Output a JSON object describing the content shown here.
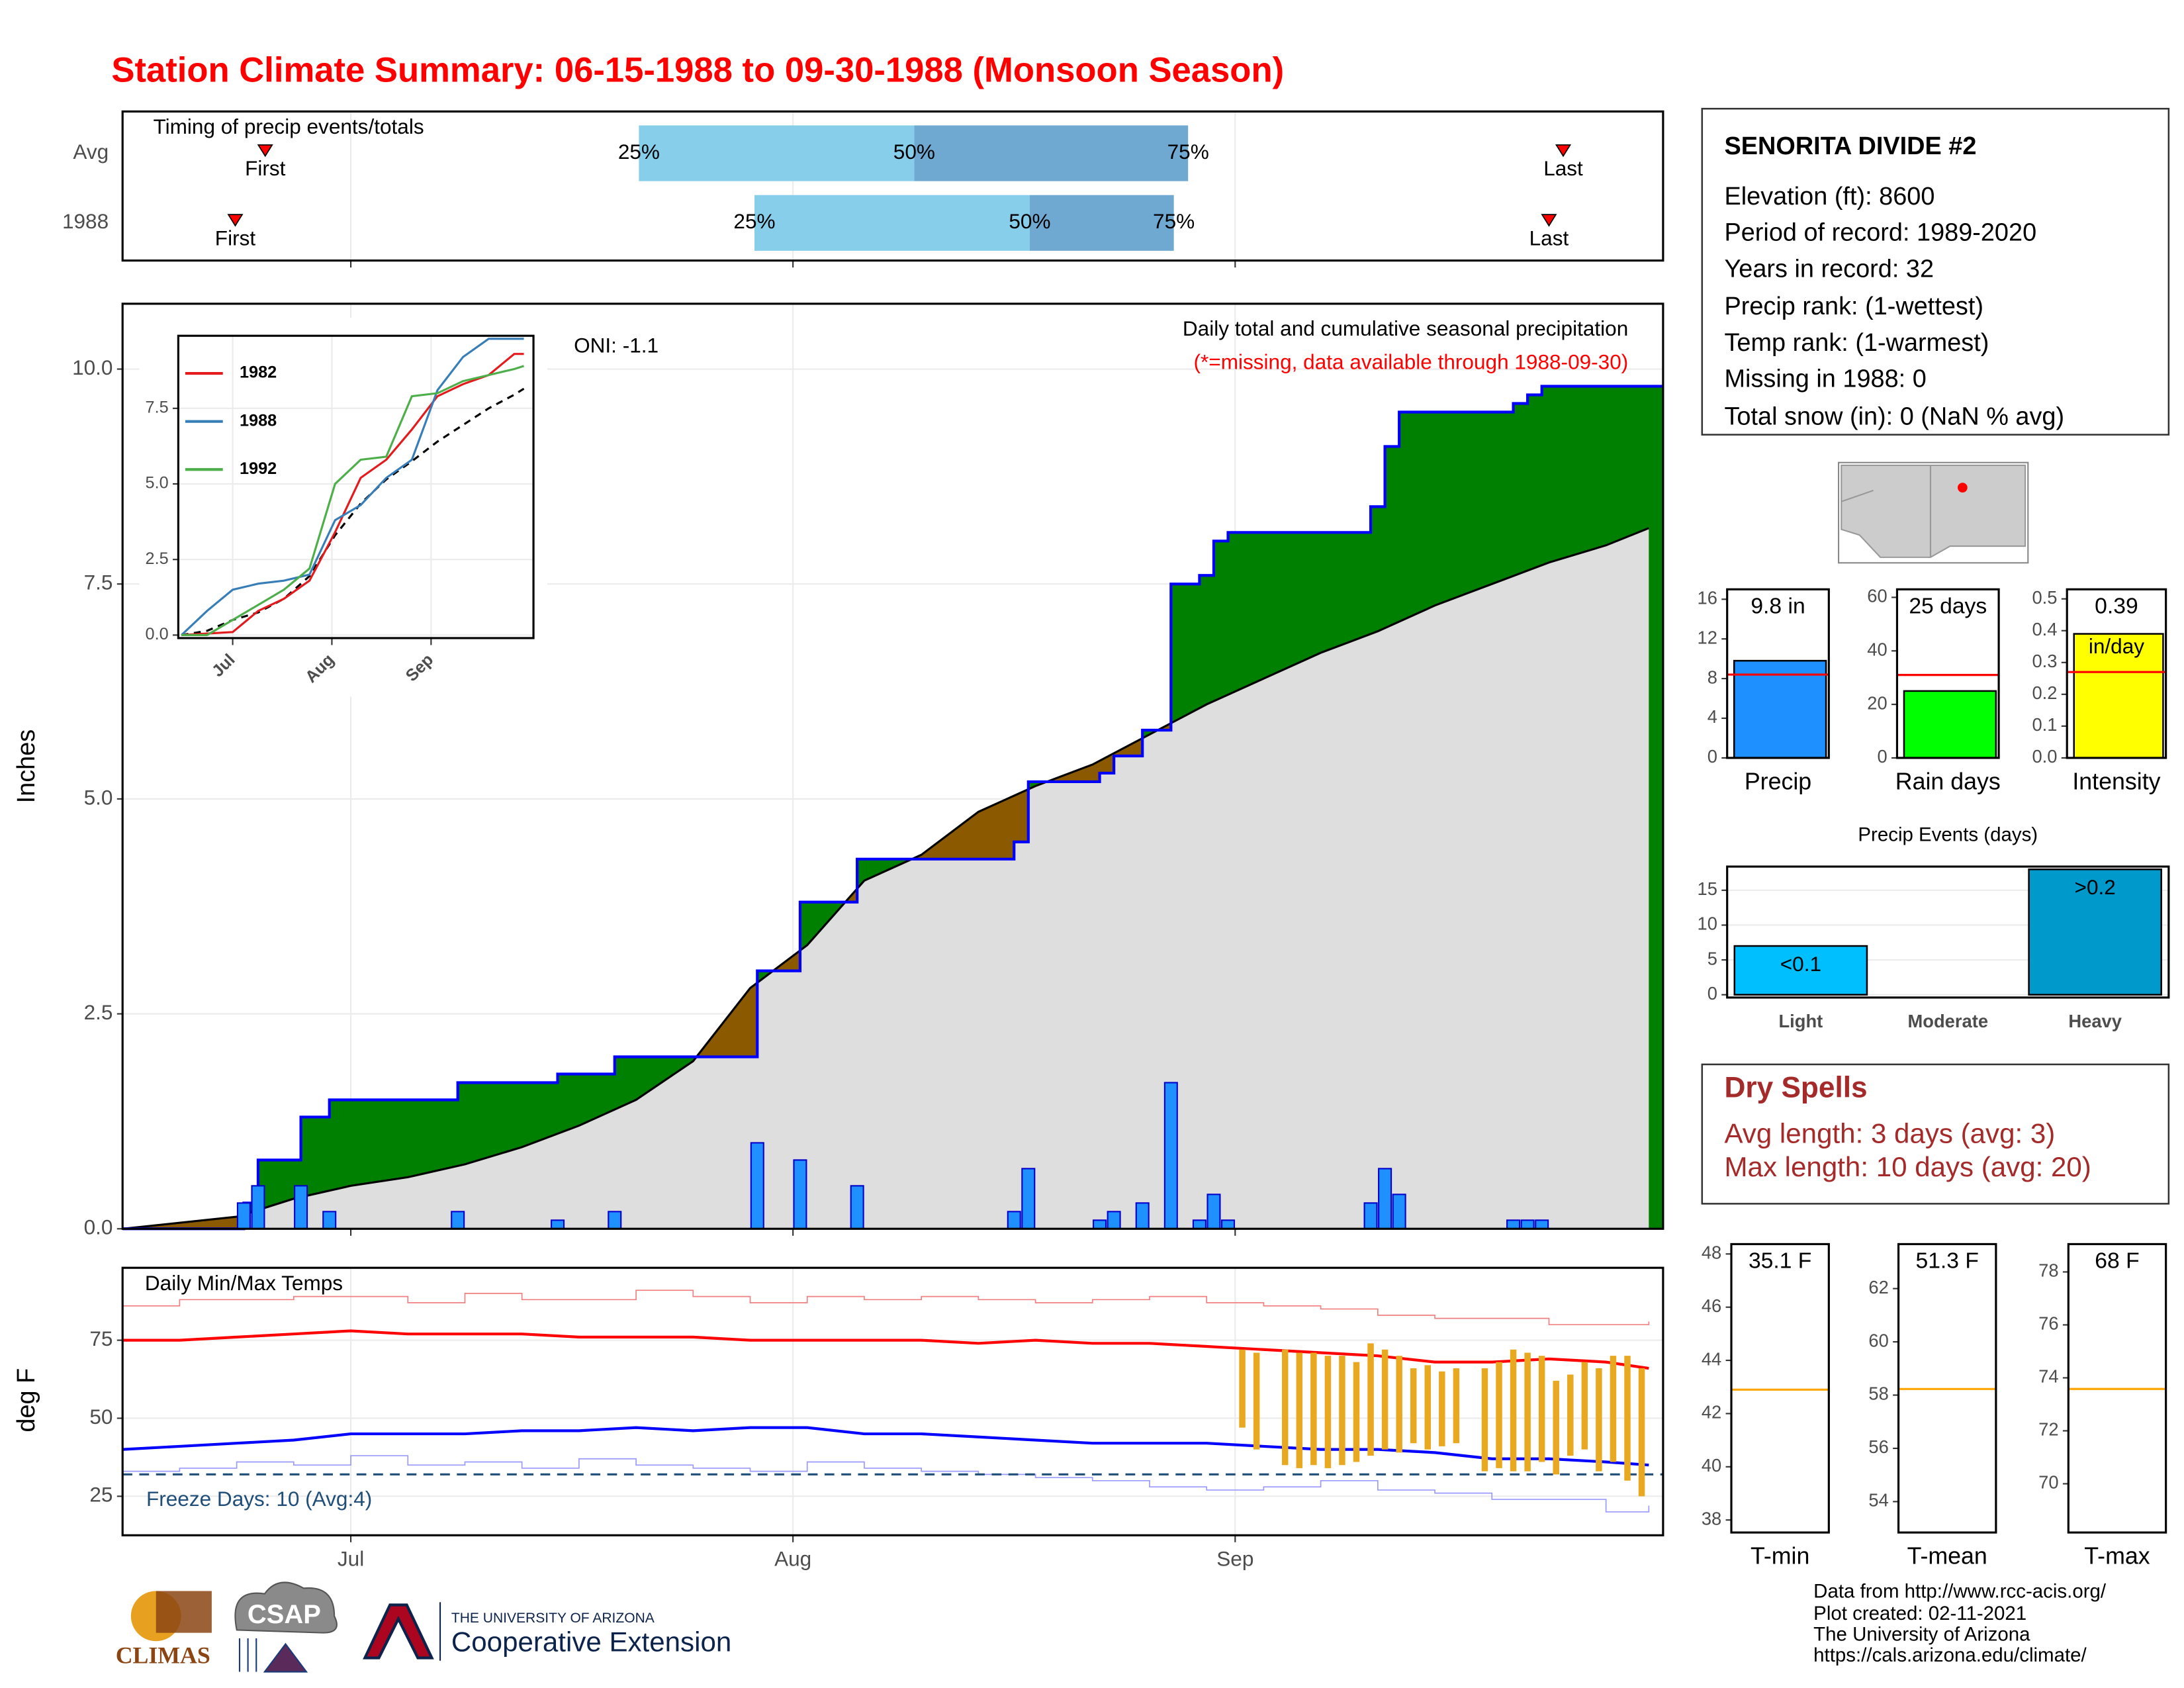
{
  "title": "Station Climate Summary: 06-15-1988 to 09-30-1988 (Monsoon Season)",
  "chart_data": [
    {
      "type": "timing",
      "title": "Timing of precip events/totals",
      "categories": [
        "Avg",
        "1988"
      ],
      "labels": [
        "First",
        "25%",
        "50%",
        "75%",
        "Last"
      ],
      "first": [
        10.0,
        7.9
      ],
      "p25": [
        36.2,
        44.3
      ],
      "p50": [
        55.5,
        63.6
      ],
      "p75": [
        74.7,
        73.7
      ],
      "last": [
        101.0,
        100.0
      ],
      "colors": [
        "#87ceeb",
        "#6fa8d0"
      ],
      "marker_color": "#ff0000",
      "xlim": [
        0,
        108
      ],
      "xticks": [
        16,
        47,
        78
      ],
      "grid": true
    },
    {
      "type": "precip",
      "title": "Daily total and cumulative seasonal precipitation",
      "subtitle": "(*=missing, data available through 1988-09-30)",
      "annotation": "ONI: -1.1",
      "ylabel": "Inches",
      "x": [
        8,
        9,
        12,
        14,
        23,
        30,
        34,
        44,
        47,
        51,
        62,
        63,
        68,
        69,
        71,
        73,
        75,
        76,
        77,
        87,
        88,
        89,
        97,
        98,
        99
      ],
      "values": [
        0.3,
        0.5,
        0.5,
        0.2,
        0.2,
        0.1,
        0.2,
        1.0,
        0.8,
        0.5,
        0.2,
        0.7,
        0.1,
        0.2,
        0.3,
        1.7,
        0.1,
        0.4,
        0.1,
        0.3,
        0.7,
        0.4,
        0.1,
        0.1,
        0.1
      ],
      "avg_x": [
        0,
        4,
        8,
        12,
        16,
        20,
        24,
        28,
        32,
        36,
        40,
        44,
        48,
        52,
        56,
        60,
        64,
        68,
        72,
        76,
        80,
        84,
        88,
        92,
        96,
        100,
        104,
        107
      ],
      "avg_values": [
        0,
        0.07,
        0.14,
        0.35,
        0.5,
        0.6,
        0.75,
        0.95,
        1.2,
        1.5,
        1.95,
        2.8,
        3.3,
        4.05,
        4.35,
        4.85,
        5.15,
        5.4,
        5.75,
        6.1,
        6.4,
        6.7,
        6.95,
        7.25,
        7.5,
        7.75,
        7.95,
        8.15
      ],
      "bar_color": "#1e90ff",
      "line_color": "#0000ff",
      "above_color": "#008000",
      "below_color": "#8b5a00",
      "avg_fill": "#dedede",
      "xlim": [
        0,
        108
      ],
      "xticks": [
        16,
        47,
        78
      ],
      "ylim": [
        0,
        10.76
      ],
      "yticks": [
        {
          "value": 0,
          "label": "0.0"
        },
        2.5,
        {
          "value": 5,
          "label": "5.0"
        },
        7.5,
        {
          "value": 10,
          "label": "10.0"
        }
      ],
      "grid": true
    },
    {
      "type": "line",
      "x": [
        0,
        8,
        16,
        24,
        32,
        40,
        48,
        56,
        64,
        72,
        80,
        88,
        96,
        104,
        107
      ],
      "series": [
        {
          "name": "1982",
          "color": "#e41a1c",
          "values": [
            0,
            0.05,
            0.1,
            0.8,
            1.2,
            1.8,
            3.4,
            5.2,
            5.8,
            6.8,
            7.9,
            8.3,
            8.6,
            9.3,
            9.3
          ]
        },
        {
          "name": "1988",
          "color": "#377eb8",
          "values": [
            0,
            0.8,
            1.5,
            1.7,
            1.8,
            2.0,
            3.8,
            4.3,
            5.2,
            5.8,
            8.1,
            9.2,
            9.8,
            9.8,
            9.8
          ]
        },
        {
          "name": "1992",
          "color": "#4daf4a",
          "values": [
            0,
            0,
            0.5,
            1.0,
            1.5,
            2.2,
            5.0,
            5.8,
            5.9,
            7.9,
            8.0,
            8.4,
            8.6,
            8.8,
            8.9
          ]
        }
      ],
      "avg_values": [
        0,
        0.14,
        0.5,
        0.75,
        1.2,
        1.95,
        3.3,
        4.35,
        5.15,
        5.75,
        6.4,
        6.95,
        7.5,
        7.95,
        8.15
      ],
      "xlim": [
        -1,
        110
      ],
      "xticks": [
        {
          "value": 16,
          "label": "Jul"
        },
        {
          "value": 47,
          "label": "Aug"
        },
        {
          "value": 78,
          "label": "Sep"
        }
      ],
      "ylim": [
        -0.1,
        9.9
      ],
      "yticks": [
        {
          "value": 0,
          "label": "0.0"
        },
        2.5,
        {
          "value": 5,
          "label": "5.0"
        },
        7.5
      ],
      "grid": true,
      "legend": "top-left"
    },
    {
      "type": "temperature",
      "title": "Daily Min/Max Temps",
      "ylabel": "deg F",
      "annotation": "Freeze Days: 10 (Avg:4)",
      "x": [
        0,
        4,
        8,
        12,
        16,
        20,
        24,
        28,
        32,
        36,
        40,
        44,
        48,
        52,
        56,
        60,
        64,
        68,
        72,
        76,
        80,
        84,
        88,
        92,
        96,
        100,
        104,
        107
      ],
      "series": [
        {
          "color": "#f08080",
          "width": 0.8,
          "step": true,
          "values": [
            86,
            88,
            88,
            89,
            89,
            87,
            90,
            88,
            88,
            91,
            89,
            87,
            89,
            88,
            89,
            88,
            87,
            88,
            89,
            87,
            86,
            85,
            83,
            82,
            82,
            80,
            80,
            81
          ]
        },
        {
          "color": "#9999ff",
          "width": 0.8,
          "step": true,
          "values": [
            33,
            34,
            36,
            35,
            38,
            35,
            36,
            34,
            37,
            35,
            34,
            33,
            36,
            34,
            33,
            32,
            31,
            30,
            28,
            27,
            28,
            30,
            27,
            26,
            24,
            24,
            20,
            22
          ]
        },
        {
          "color": "#ff0000",
          "width": 2,
          "step": false,
          "values": [
            75,
            75,
            76,
            77,
            78,
            77,
            77,
            77,
            76,
            76,
            76,
            75,
            75,
            75,
            75,
            74,
            75,
            74,
            74,
            73,
            72,
            71,
            70,
            68,
            68,
            69,
            68,
            66
          ]
        },
        {
          "color": "#0000ff",
          "width": 2,
          "step": false,
          "values": [
            40,
            41,
            42,
            43,
            45,
            45,
            45,
            46,
            46,
            47,
            46,
            47,
            47,
            45,
            45,
            44,
            43,
            42,
            42,
            42,
            41,
            40,
            40,
            39,
            37,
            37,
            36,
            35
          ]
        }
      ],
      "obs_x": [
        78,
        79,
        81,
        82,
        83,
        84,
        85,
        86,
        87,
        88,
        89,
        90,
        91,
        92,
        93,
        95,
        96,
        97,
        98,
        99,
        100,
        101,
        102,
        103,
        104,
        105,
        106
      ],
      "obs_low": [
        47,
        40,
        35,
        34,
        35,
        34,
        35,
        36,
        38,
        40,
        39,
        42,
        40,
        41,
        42,
        33,
        34,
        33,
        33,
        36,
        32,
        38,
        40,
        33,
        36,
        30,
        25
      ],
      "obs_high": [
        72,
        71,
        72,
        71,
        71,
        70,
        70,
        68,
        74,
        72,
        70,
        66,
        67,
        65,
        66,
        66,
        68,
        72,
        71,
        70,
        62,
        64,
        68,
        66,
        70,
        70,
        66
      ],
      "obs_color": "#e8a820",
      "freeze": 32,
      "freeze_color": "#1f4e79",
      "xlim": [
        0,
        108
      ],
      "xticks": [
        {
          "value": 16,
          "label": "Jul"
        },
        {
          "value": 47,
          "label": "Aug"
        },
        {
          "value": 78,
          "label": "Sep"
        }
      ],
      "ylim": [
        12.5,
        98.2
      ],
      "yticks": [
        25,
        50,
        75
      ],
      "grid": true
    },
    {
      "type": "bar",
      "categories": [
        "Precip"
      ],
      "values": [
        9.8
      ],
      "value_labels": [
        "9.8 in"
      ],
      "average": 8.4,
      "avg_color": "#ff0000",
      "color": "#1e90ff",
      "ylim": [
        0,
        17
      ],
      "yticks": [
        0,
        4,
        8,
        12,
        16
      ]
    },
    {
      "type": "bar",
      "categories": [
        "Rain days"
      ],
      "values": [
        25
      ],
      "value_labels": [
        "25 days"
      ],
      "average": 31,
      "avg_color": "#ff0000",
      "color": "#00ff00",
      "ylim": [
        0,
        63
      ],
      "yticks": [
        0,
        20,
        40,
        60
      ]
    },
    {
      "type": "bar",
      "categories": [
        "Intensity"
      ],
      "values": [
        0.39
      ],
      "unit": "in/day",
      "average": 0.27,
      "avg_color": "#ff0000",
      "color": "#ffff00",
      "ylim": [
        0,
        0.53
      ],
      "yticks": [
        {
          "value": 0,
          "label": "0.0"
        },
        0.1,
        0.2,
        0.3,
        0.4,
        0.5
      ]
    },
    {
      "type": "bar",
      "title": "Precip Events (days)",
      "categories": [
        "Light",
        "Moderate",
        "Heavy"
      ],
      "values": [
        7,
        0,
        18
      ],
      "annotations": [
        "<0.1",
        null,
        ">0.2"
      ],
      "colors": [
        "#00bfff",
        "#0099cc",
        "#0099cc"
      ],
      "ylim": [
        -0.4,
        18.4
      ],
      "yticks": [
        0,
        5,
        10,
        15
      ],
      "grid": true
    },
    {
      "type": "bar",
      "categories": [
        "T-min"
      ],
      "values": [
        35.1
      ],
      "value_labels": [
        "35.1 F"
      ],
      "average": 42.9,
      "avg_color": "#ffa500",
      "ylim": [
        37.53,
        48.37
      ],
      "yticks": [
        38,
        40,
        42,
        44,
        46,
        48
      ]
    },
    {
      "type": "bar",
      "categories": [
        "T-mean"
      ],
      "values": [
        51.3
      ],
      "value_labels": [
        "51.3 F"
      ],
      "average": 58.23,
      "avg_color": "#ffa500",
      "ylim": [
        52.84,
        63.67
      ],
      "yticks": [
        54,
        56,
        58,
        60,
        62
      ]
    },
    {
      "type": "bar",
      "categories": [
        "T-max"
      ],
      "values": [
        68
      ],
      "value_labels": [
        "68 F"
      ],
      "average": 73.58,
      "avg_color": "#ffa500",
      "ylim": [
        68.16,
        79.05
      ],
      "yticks": [
        70,
        72,
        74,
        76,
        78
      ]
    }
  ],
  "station": {
    "name": "SENORITA DIVIDE #2",
    "lines": [
      "Elevation (ft): 8600",
      "Period of record: 1989-2020",
      "Years in record: 32",
      "Precip rank:  (1-wettest)",
      "Temp rank:  (1-warmest)",
      "Missing in 1988: 0",
      "Total snow (in): 0 (NaN % avg)"
    ]
  },
  "dry_spells": {
    "title": "Dry Spells",
    "lines": [
      "Avg length: 3 days (avg: 3)",
      "Max length: 10 days (avg: 20)"
    ]
  },
  "footer": [
    "Data from http://www.rcc-acis.org/",
    "Plot created: 02-11-2021",
    "The University of Arizona",
    "https://cals.arizona.edu/climate/"
  ],
  "logos": [
    "CLIMAS",
    "CSAP",
    "THE UNIVERSITY OF ARIZONA",
    "Cooperative Extension"
  ]
}
